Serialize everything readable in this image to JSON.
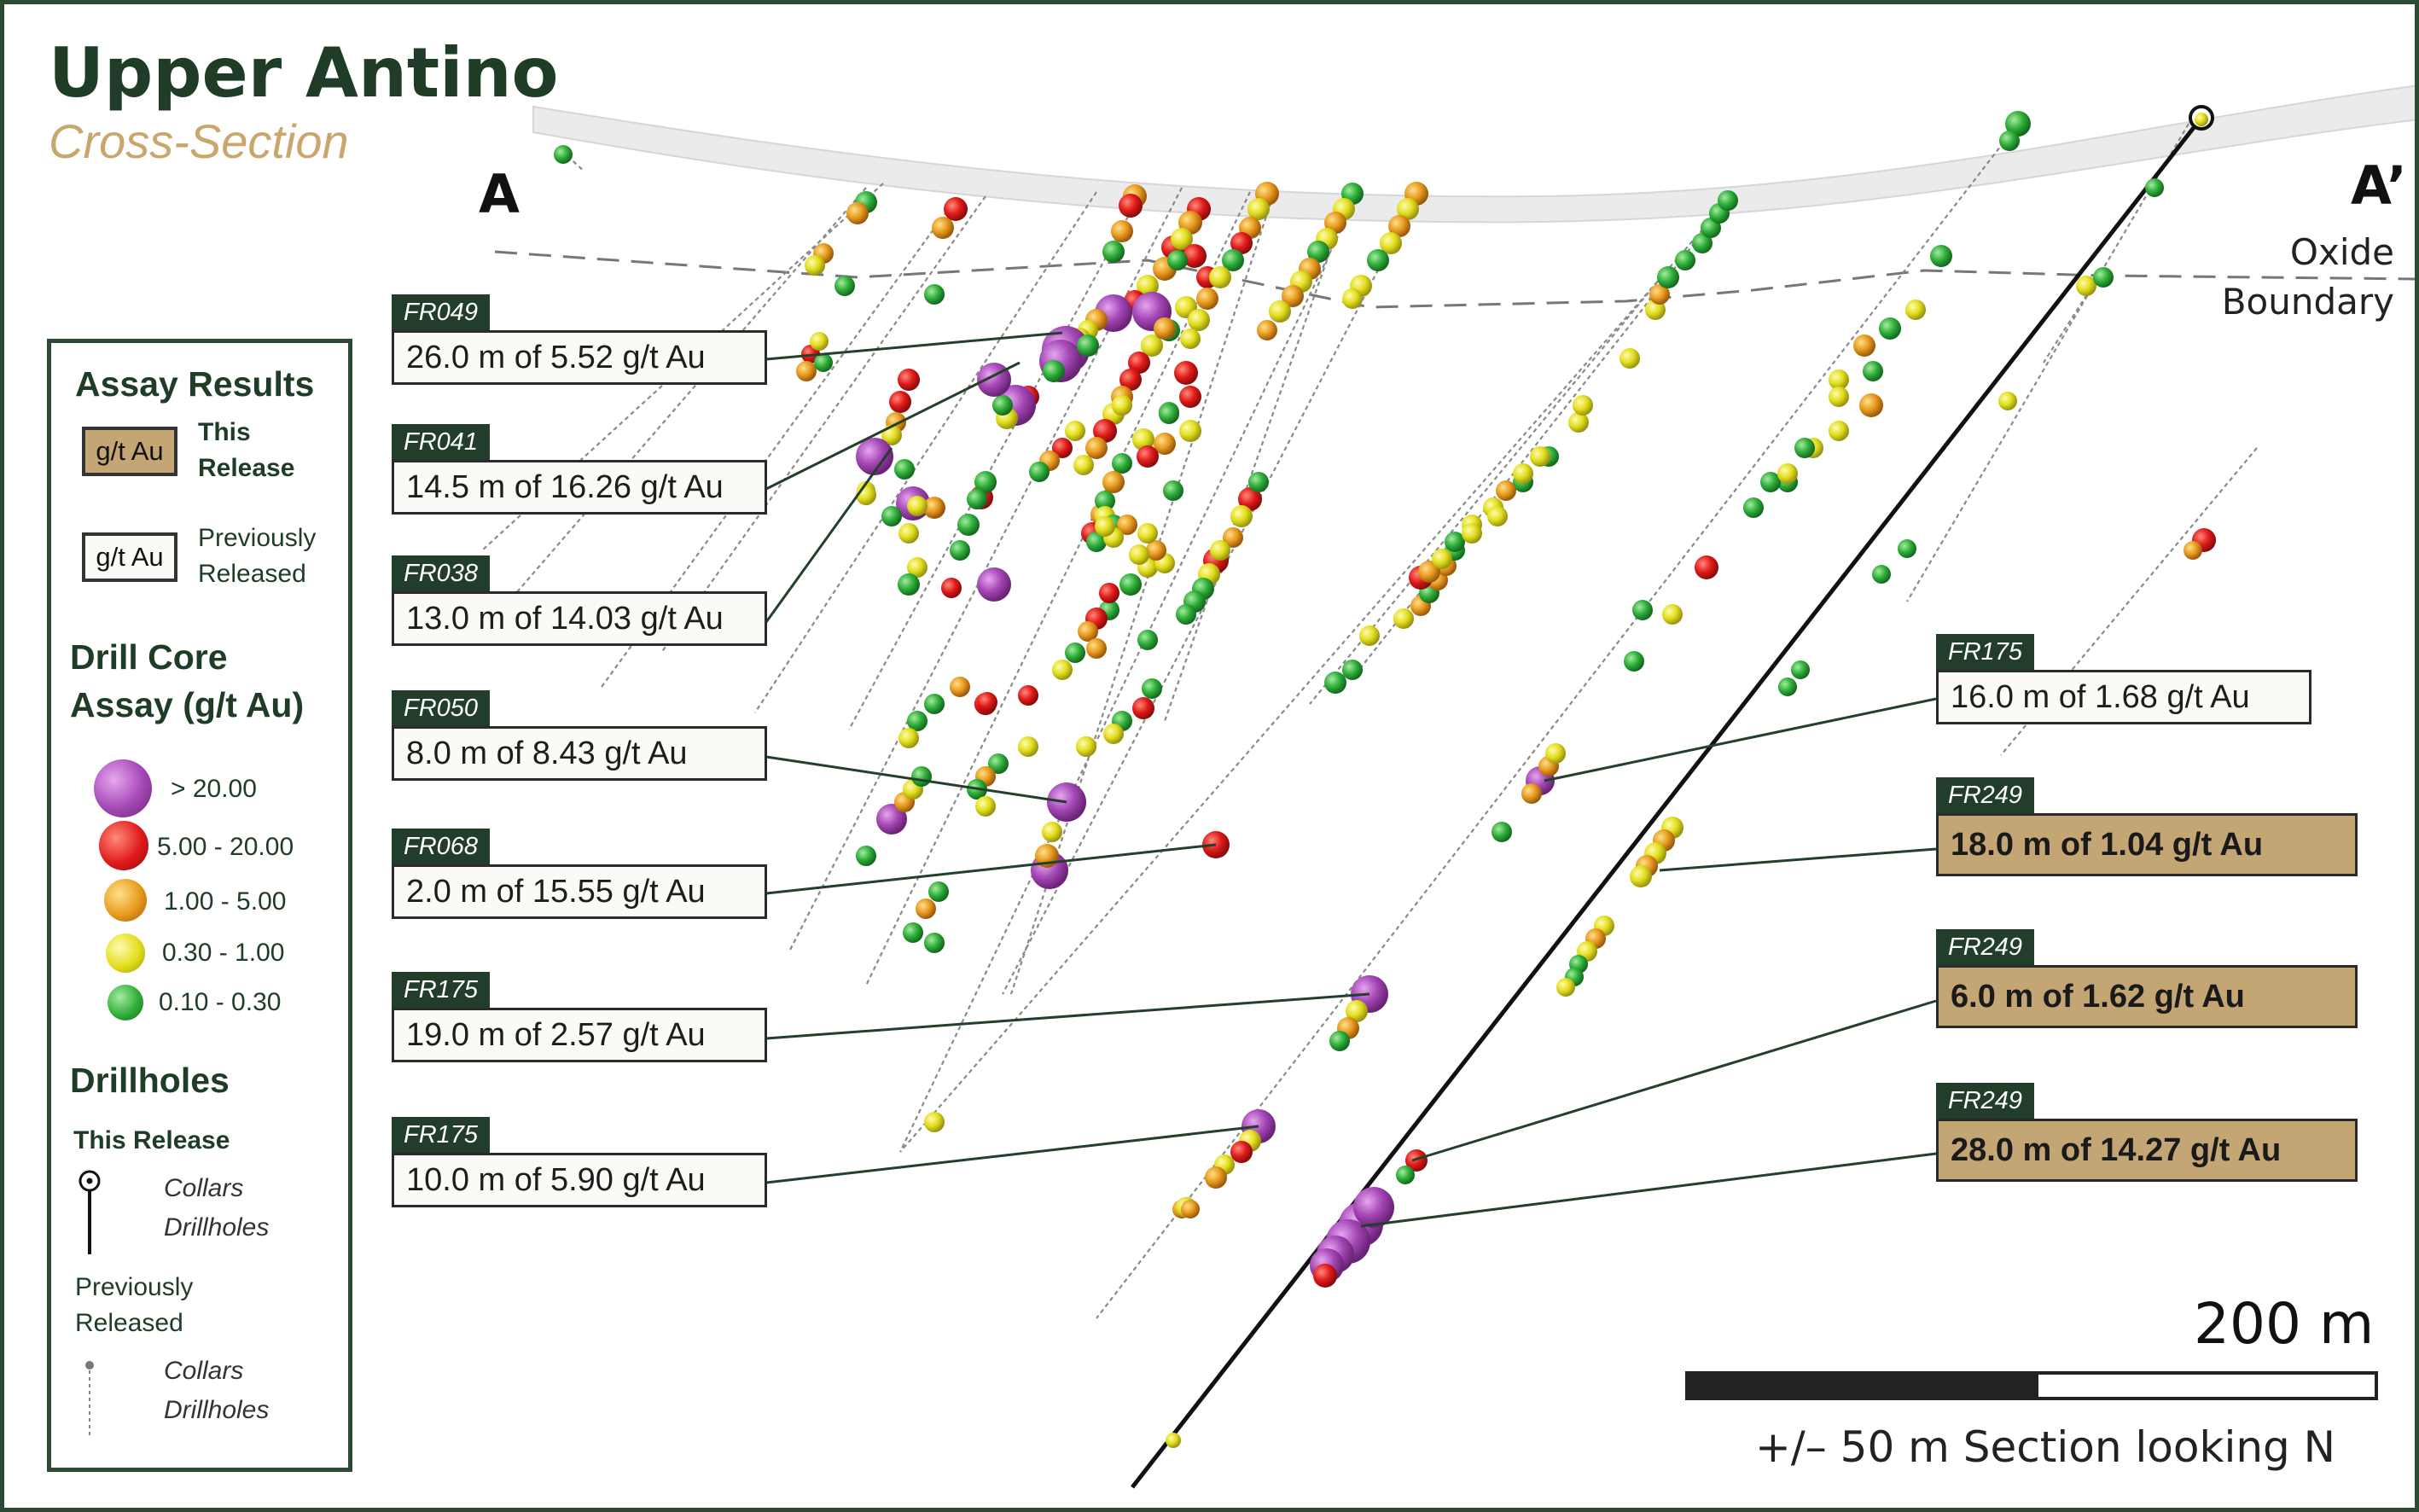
{
  "title": "Upper Antino",
  "subtitle": "Cross-Section",
  "section_labels": {
    "a": "A",
    "a_prime": "A’"
  },
  "oxide_boundary": [
    "Oxide",
    "Boundary"
  ],
  "legend": {
    "assay_results": "Assay Results",
    "swatch_text": "g/t Au",
    "this_release": [
      "This",
      "Release"
    ],
    "previously_released": [
      "Previously",
      "Released"
    ],
    "drill_core_title": [
      "Drill Core",
      "Assay (g/t Au)"
    ],
    "grade_classes": [
      {
        "label": "> 20.00",
        "color": "#a347b5"
      },
      {
        "label": "5.00 - 20.00",
        "color": "#e01a1a"
      },
      {
        "label": "1.00 - 5.00",
        "color": "#e79a1e"
      },
      {
        "label": "0.30 - 1.00",
        "color": "#e2de1c"
      },
      {
        "label": "0.10 - 0.30",
        "color": "#2fae3a"
      }
    ],
    "drillholes_title": "Drillholes",
    "this_release_label": "This Release",
    "collars_label": "Collars",
    "drillholes_label": "Drillholes",
    "prev_label": [
      "Previously",
      "Released"
    ]
  },
  "callouts": [
    {
      "hole": "FR049",
      "text": "26.0 m of 5.52 g/t Au",
      "release": "previous"
    },
    {
      "hole": "FR041",
      "text": "14.5 m of 16.26 g/t Au",
      "release": "previous"
    },
    {
      "hole": "FR038",
      "text": "13.0 m of 14.03 g/t Au",
      "release": "previous"
    },
    {
      "hole": "FR050",
      "text": "8.0 m of 8.43 g/t Au",
      "release": "previous"
    },
    {
      "hole": "FR068",
      "text": "2.0 m of 15.55 g/t Au",
      "release": "previous"
    },
    {
      "hole": "FR175",
      "text": "19.0 m of 2.57 g/t Au",
      "release": "previous"
    },
    {
      "hole": "FR175",
      "text": "10.0 m of 5.90 g/t Au",
      "release": "previous"
    },
    {
      "hole": "FR175",
      "text": "16.0 m of 1.68 g/t Au",
      "release": "previous"
    },
    {
      "hole": "FR249",
      "text": "18.0 m of 1.04 g/t Au",
      "release": "this"
    },
    {
      "hole": "FR249",
      "text": "6.0 m of 1.62 g/t Au",
      "release": "this"
    },
    {
      "hole": "FR249",
      "text": "28.0 m of 14.27 g/t Au",
      "release": "this"
    }
  ],
  "scale": {
    "length": "200 m",
    "note": "+/– 50 m Section looking N"
  }
}
